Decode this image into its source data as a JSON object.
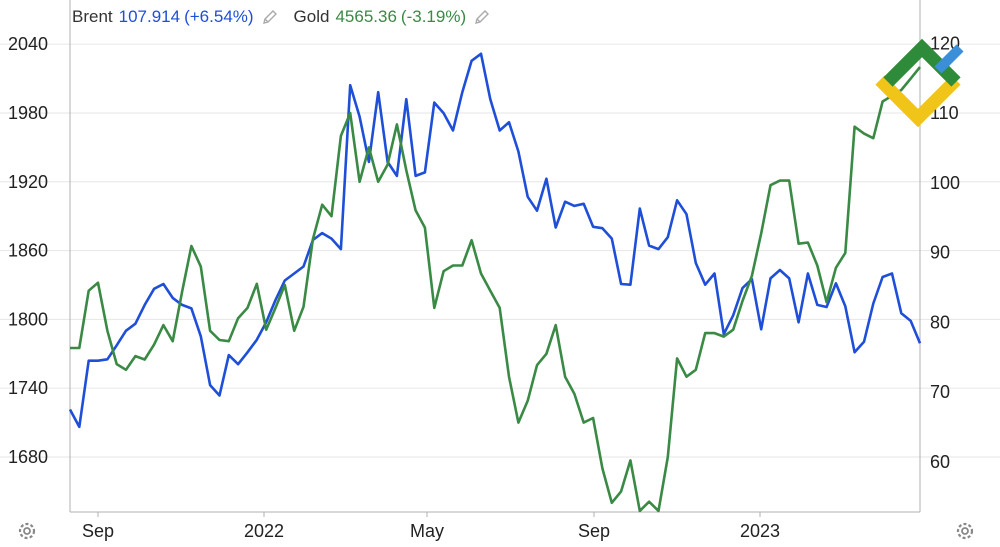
{
  "legend": {
    "items": [
      {
        "name": "Brent",
        "value": "107.914",
        "change": "(+6.54%)",
        "color": "#1f4fd8",
        "edit_icon": "pencil-icon"
      },
      {
        "name": "Gold",
        "value": "4565.36",
        "change": "(-3.19%)",
        "color": "#3a8a45",
        "edit_icon": "pencil-icon"
      }
    ]
  },
  "icons": {
    "settings_left": "gear-icon",
    "settings_right": "gear-icon",
    "logo": "brand-logo"
  },
  "colors": {
    "grid": "#e6e6e6",
    "axis": "#b0b0b0",
    "logo_green": "#2e8b3a",
    "logo_yellow": "#f0c419",
    "logo_blue": "#3b8fd8"
  },
  "chart_data": {
    "type": "line",
    "title": "",
    "xlabel": "",
    "x_ticks": [
      "Sep",
      "2022",
      "May",
      "Sep",
      "2023"
    ],
    "y_left": {
      "ticks": [
        "1680",
        "1740",
        "1800",
        "1860",
        "1920",
        "1980",
        "2040"
      ],
      "range": [
        1632,
        2048
      ],
      "series": "Gold"
    },
    "y_right": {
      "ticks": [
        "60",
        "70",
        "80",
        "90",
        "100",
        "110",
        "120"
      ],
      "range": [
        52.8,
        121.2
      ],
      "series": "Brent"
    },
    "grid": true,
    "legend_position": "top-left",
    "series": [
      {
        "name": "Brent",
        "axis": "right",
        "color": "#1f4fd8",
        "values": [
          67.5,
          65,
          74.5,
          74.5,
          74.7,
          76.7,
          78.8,
          79.8,
          82.5,
          84.8,
          85.5,
          83.5,
          82.5,
          82,
          78,
          71,
          69.5,
          75.3,
          74,
          75.7,
          77.5,
          80,
          83.2,
          86,
          87,
          88,
          91.8,
          92.8,
          92,
          90.5,
          114,
          109.5,
          103,
          113,
          103,
          101,
          112,
          101,
          101.5,
          111.5,
          110,
          107.5,
          113,
          117.5,
          118.5,
          112,
          107.5,
          108.7,
          104.5,
          98,
          96,
          100.6,
          93.6,
          97.3,
          96.7,
          97,
          93.7,
          93.5,
          92,
          85.5,
          85.4,
          96.3,
          91,
          90.5,
          92.2,
          97.5,
          95.5,
          88.5,
          85.4,
          87,
          78.3,
          81,
          84.9,
          86.2,
          79,
          86.3,
          87.5,
          86.3,
          80,
          87,
          82.5,
          82.2,
          85.6,
          82.3,
          75.7,
          77.2,
          82.7,
          86.5,
          87,
          81.3,
          80.2,
          77
        ]
      },
      {
        "name": "Gold",
        "axis": "left",
        "color": "#3a8a45",
        "values": [
          1775,
          1775,
          1825,
          1832,
          1790,
          1761,
          1756,
          1768,
          1765,
          1778,
          1795,
          1781,
          1824,
          1864,
          1846,
          1790,
          1782,
          1781,
          1801,
          1810,
          1831,
          1791,
          1810,
          1830,
          1790,
          1811,
          1870,
          1900,
          1890,
          1960,
          1980,
          1920,
          1950,
          1920,
          1935,
          1970,
          1930,
          1895,
          1880,
          1810,
          1842,
          1847,
          1847,
          1869,
          1840,
          1825,
          1810,
          1750,
          1710,
          1729,
          1760,
          1770,
          1795,
          1750,
          1735,
          1710,
          1714,
          1670,
          1640,
          1650,
          1677,
          1633,
          1641,
          1633,
          1680,
          1766,
          1750,
          1756,
          1788,
          1788,
          1785,
          1791,
          1816,
          1838,
          1875,
          1917,
          1921,
          1921,
          1866,
          1867,
          1847,
          1815,
          1845,
          1858,
          1968,
          1962,
          1958,
          1990,
          1995,
          2000,
          2010,
          2020
        ]
      }
    ]
  }
}
